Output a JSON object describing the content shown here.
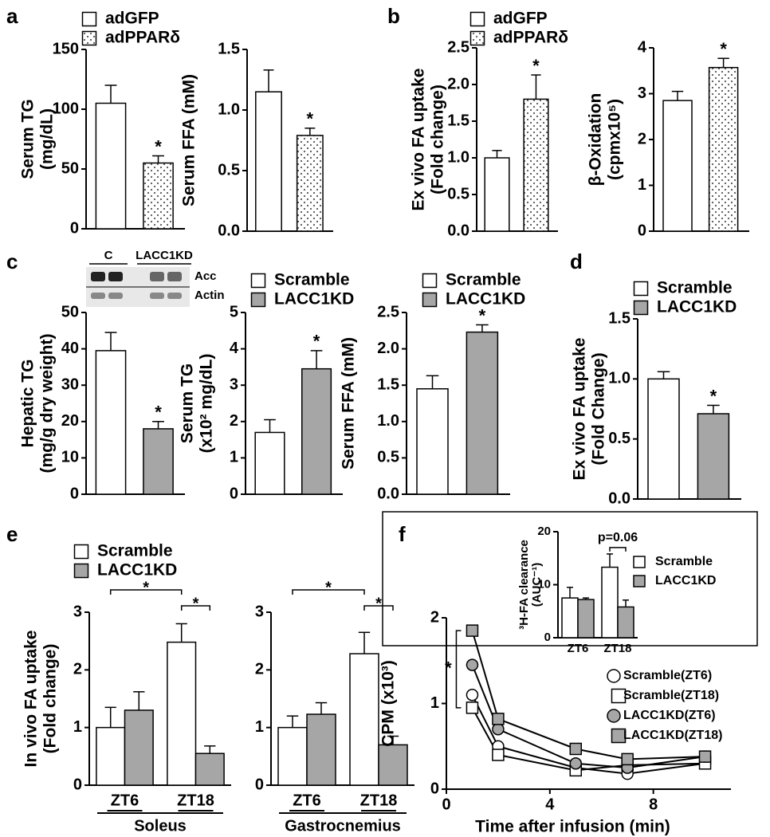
{
  "chart_data": [
    {
      "type": "bar",
      "panel": "a",
      "ylabel": [
        "Serum TG",
        "(mg/dL)"
      ],
      "ylim": [
        0,
        150
      ],
      "yticks": [
        0,
        50,
        100,
        150
      ],
      "series": [
        {
          "name": "adGFP",
          "color": "#ffffff",
          "values": [
            105
          ],
          "errors": [
            15
          ]
        },
        {
          "name": "adPPARδ",
          "color": "#ffffff",
          "pattern": "dots",
          "values": [
            55
          ],
          "errors": [
            6
          ],
          "annotations": [
            "*"
          ]
        }
      ]
    },
    {
      "type": "bar",
      "ylabel": [
        "Serum FFA (mM)"
      ],
      "ylim": [
        0,
        1.5
      ],
      "yticks": [
        {
          "value": 0,
          "label": "0.0"
        },
        0.5,
        {
          "value": 1,
          "label": "1.0"
        },
        1.5
      ],
      "series": [
        {
          "color": "#ffffff",
          "values": [
            1.15
          ],
          "errors": [
            0.18
          ]
        },
        {
          "color": "#ffffff",
          "pattern": "dots",
          "values": [
            0.79
          ],
          "errors": [
            0.06
          ],
          "annotations": [
            "*"
          ]
        }
      ]
    },
    {
      "type": "bar",
      "panel": "b",
      "ylabel": [
        "Ex vivo FA uptake",
        "(Fold change)"
      ],
      "ylim": [
        0,
        2.5
      ],
      "yticks": [
        {
          "value": 0,
          "label": "0.0"
        },
        0.5,
        {
          "value": 1,
          "label": "1.0"
        },
        1.5,
        {
          "value": 2,
          "label": "2.0"
        },
        2.5
      ],
      "series": [
        {
          "name": "adGFP",
          "color": "#ffffff",
          "values": [
            1.0
          ],
          "errors": [
            0.1
          ]
        },
        {
          "name": "adPPARδ",
          "color": "#ffffff",
          "pattern": "dots",
          "values": [
            1.8
          ],
          "errors": [
            0.33
          ],
          "annotations": [
            "*"
          ]
        }
      ]
    },
    {
      "type": "bar",
      "ylabel": [
        "β-Oxidation",
        "(cpmx10⁵)"
      ],
      "ylim": [
        0,
        4
      ],
      "yticks": [
        0,
        1,
        2,
        3,
        4
      ],
      "series": [
        {
          "color": "#ffffff",
          "values": [
            2.85
          ],
          "errors": [
            0.2
          ]
        },
        {
          "color": "#ffffff",
          "pattern": "dots",
          "values": [
            3.57
          ],
          "errors": [
            0.2
          ],
          "annotations": [
            "*"
          ]
        }
      ]
    },
    {
      "type": "bar",
      "panel": "c",
      "ylabel": [
        "Hepatic TG",
        "(mg/g dry weight)"
      ],
      "ylim": [
        0,
        50
      ],
      "yticks": [
        0,
        10,
        20,
        30,
        40,
        50
      ],
      "blot": {
        "lanes": [
          "C",
          "LACC1KD"
        ],
        "rows": [
          "Acc",
          "Actin"
        ]
      },
      "series": [
        {
          "color": "#ffffff",
          "values": [
            39.5
          ],
          "errors": [
            5
          ]
        },
        {
          "color": "#a6a6a6",
          "values": [
            18
          ],
          "errors": [
            2
          ],
          "annotations": [
            "*"
          ]
        }
      ]
    },
    {
      "type": "bar",
      "ylabel": [
        "Serum TG",
        "(x10² mg/dL)"
      ],
      "ylim": [
        0,
        5
      ],
      "yticks": [
        0,
        1,
        2,
        3,
        4,
        5
      ],
      "series": [
        {
          "name": "Scramble",
          "color": "#ffffff",
          "values": [
            1.7
          ],
          "errors": [
            0.35
          ]
        },
        {
          "name": "LACC1KD",
          "color": "#a6a6a6",
          "values": [
            3.45
          ],
          "errors": [
            0.5
          ],
          "annotations": [
            "*"
          ]
        }
      ]
    },
    {
      "type": "bar",
      "ylabel": [
        "Serum FFA (mM)"
      ],
      "ylim": [
        0,
        2.5
      ],
      "yticks": [
        {
          "value": 0,
          "label": "0.0"
        },
        0.5,
        {
          "value": 1,
          "label": "1.0"
        },
        1.5,
        {
          "value": 2,
          "label": "2.0"
        },
        2.5
      ],
      "series": [
        {
          "name": "Scramble",
          "color": "#ffffff",
          "values": [
            1.45
          ],
          "errors": [
            0.18
          ]
        },
        {
          "name": "LACC1KD",
          "color": "#a6a6a6",
          "values": [
            2.23
          ],
          "errors": [
            0.1
          ],
          "annotations": [
            "*"
          ]
        }
      ]
    },
    {
      "type": "bar",
      "panel": "d",
      "ylabel": [
        "Ex vivo FA uptake",
        "(Fold Change)"
      ],
      "ylim": [
        0,
        1.5
      ],
      "yticks": [
        {
          "value": 0,
          "label": "0.0"
        },
        0.5,
        {
          "value": 1,
          "label": "1.0"
        },
        1.5
      ],
      "series": [
        {
          "name": "Scramble",
          "color": "#ffffff",
          "values": [
            1.0
          ],
          "errors": [
            0.06
          ]
        },
        {
          "name": "LACC1KD",
          "color": "#a6a6a6",
          "values": [
            0.71
          ],
          "errors": [
            0.07
          ],
          "annotations": [
            "*"
          ]
        }
      ]
    },
    {
      "type": "bar",
      "panel": "e",
      "ylabel": [
        "In vivo FA uptake",
        "(Fold change)"
      ],
      "ylim": [
        0,
        3
      ],
      "yticks": [
        0,
        1,
        2,
        3
      ],
      "categories": [
        "ZT6",
        "ZT18"
      ],
      "group_label": "Soleus",
      "comparisons": [
        {
          "text": "*"
        },
        {
          "text": "*"
        }
      ],
      "series": [
        {
          "name": "Scramble",
          "color": "#ffffff",
          "values": [
            1.0,
            2.48
          ],
          "errors": [
            0.35,
            0.32
          ]
        },
        {
          "name": "LACC1KD",
          "color": "#a6a6a6",
          "values": [
            1.3,
            0.55
          ],
          "errors": [
            0.32,
            0.13
          ]
        }
      ]
    },
    {
      "type": "bar",
      "ylim": [
        0,
        3
      ],
      "yticks": [
        0,
        1,
        2,
        3
      ],
      "categories": [
        "ZT6",
        "ZT18"
      ],
      "group_label": "Gastrocnemius",
      "comparisons": [
        {
          "text": "*"
        },
        {
          "text": "*"
        }
      ],
      "series": [
        {
          "color": "#ffffff",
          "values": [
            1.0,
            2.28
          ],
          "errors": [
            0.2,
            0.37
          ]
        },
        {
          "color": "#a6a6a6",
          "values": [
            1.23,
            0.7
          ],
          "errors": [
            0.2,
            0.15
          ]
        }
      ]
    },
    {
      "type": "line",
      "panel": "f",
      "ylabel": [
        "CPM (x10³)"
      ],
      "xlabel": "Time after infusion (min)",
      "x": [
        1,
        2,
        5,
        7,
        10
      ],
      "xlim": [
        0,
        11
      ],
      "xticks": [
        0,
        4,
        8
      ],
      "ylim": [
        0,
        2
      ],
      "yticks": [
        0,
        1,
        2
      ],
      "comparisons": [
        {
          "text": "*"
        }
      ],
      "series": [
        {
          "name": "Scramble(ZT6)",
          "color": "#ffffff",
          "marker": "circle",
          "values": [
            1.1,
            0.5,
            0.25,
            0.18,
            0.3
          ]
        },
        {
          "name": "Scramble(ZT18)",
          "color": "#ffffff",
          "marker": "square",
          "values": [
            0.95,
            0.4,
            0.22,
            0.28,
            0.3
          ]
        },
        {
          "name": "LACC1KD(ZT6)",
          "color": "#a6a6a6",
          "marker": "circle",
          "values": [
            1.45,
            0.7,
            0.3,
            0.25,
            0.38
          ]
        },
        {
          "name": "LACC1KD(ZT18)",
          "color": "#a6a6a6",
          "marker": "square",
          "values": [
            1.85,
            0.82,
            0.47,
            0.35,
            0.38
          ]
        }
      ]
    },
    {
      "type": "bar",
      "ylabel": [
        "³H-FA clearance",
        "(AUC⁻¹)"
      ],
      "ylim": [
        0,
        20
      ],
      "yticks": [
        0,
        10,
        20
      ],
      "categories": [
        "ZT6",
        "ZT18"
      ],
      "comparisons": [
        {
          "text": "p=0.06"
        }
      ],
      "series": [
        {
          "name": "Scramble",
          "color": "#ffffff",
          "values": [
            7.5,
            13.3
          ],
          "errors": [
            2,
            2.5
          ]
        },
        {
          "name": "LACC1KD",
          "color": "#a6a6a6",
          "values": [
            7.2,
            5.8
          ],
          "errors": [
            0.3,
            1.3
          ]
        }
      ]
    }
  ]
}
